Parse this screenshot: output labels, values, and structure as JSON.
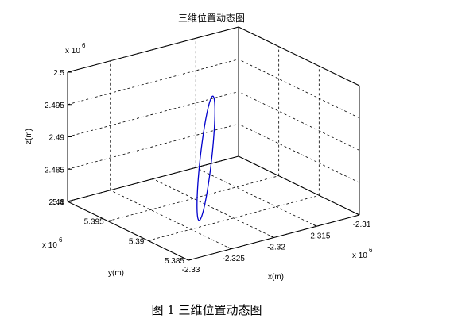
{
  "chart_data": {
    "type": "line3d",
    "title": "三维位置动态图",
    "xlabel": "x(m)",
    "ylabel": "y(m)",
    "zlabel": "z(m)",
    "x_exponent_label": "x 10",
    "x_exponent_power": "6",
    "y_exponent_label": "x 10",
    "y_exponent_power": "6",
    "z_exponent_label": "x 10",
    "z_exponent_power": "6",
    "xlim": [
      -2.33,
      -2.31
    ],
    "ylim": [
      5.385,
      5.4
    ],
    "zlim": [
      2.48,
      2.5
    ],
    "xticks": [
      -2.33,
      -2.325,
      -2.32,
      -2.315,
      -2.31
    ],
    "xtick_labels": [
      "-2.33",
      "-2.325",
      "-2.32",
      "-2.315",
      "-2.31"
    ],
    "yticks": [
      5.385,
      5.39,
      5.395,
      5.4
    ],
    "ytick_labels": [
      "5.385",
      "5.39",
      "5.395",
      "5.4"
    ],
    "zticks": [
      2.48,
      2.485,
      2.49,
      2.495,
      2.5
    ],
    "ztick_labels": [
      "2.48",
      "2.485",
      "2.49",
      "2.495",
      "2.5"
    ],
    "grid": true,
    "series": [
      {
        "color": "#0000cc",
        "shape": "closed-loop",
        "start": [
          -2.3245,
          5.3895,
          2.4815
        ],
        "end": [
          -2.3182,
          5.3945,
          2.4955
        ],
        "half_width": [
          0.0004,
          -0.0003,
          0.0001
        ]
      }
    ]
  },
  "caption": "图 1  三维位置动态图"
}
